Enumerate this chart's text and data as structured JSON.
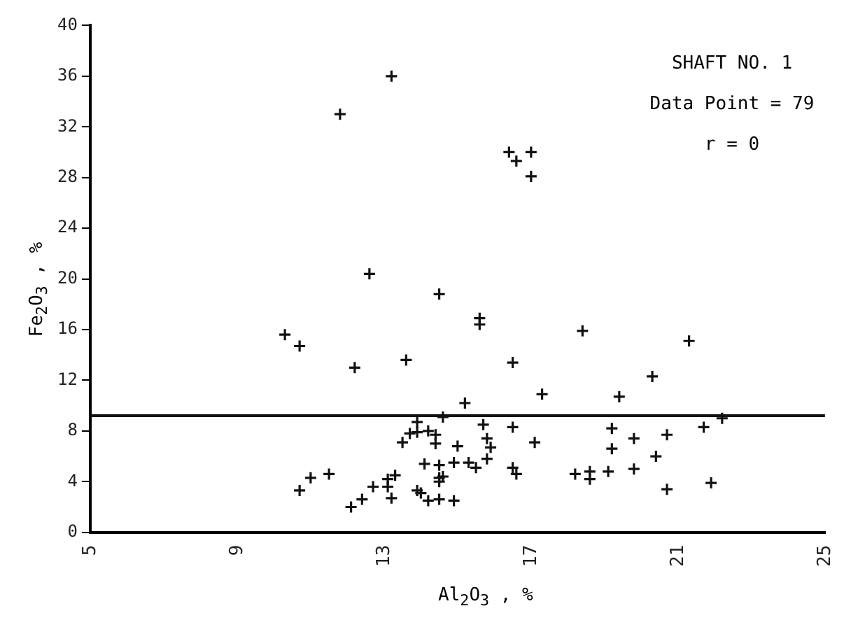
{
  "chart_data": {
    "type": "scatter",
    "xlabel": "Al$_{2}$O$_{3}$ , %",
    "ylabel": "Fe$_{2}$O$_{3}$ , %",
    "annotations": [
      "SHAFT NO. 1",
      "Data Point = 79",
      "r = 0"
    ],
    "xlim": [
      5,
      25
    ],
    "xticks": [
      5,
      9,
      13,
      17,
      21,
      25
    ],
    "ylim": [
      0,
      40
    ],
    "yticks": [
      0,
      4,
      8,
      12,
      16,
      20,
      24,
      28,
      32,
      36,
      40
    ],
    "grid": false,
    "legend": false,
    "marker": "cross",
    "ref_lines": [
      {
        "axis": "y",
        "value": 9.2,
        "color": "#111111"
      }
    ],
    "series": [
      {
        "color": "#111111",
        "x": [
          13.2,
          11.8,
          12.6,
          14.5,
          16.4,
          17.0,
          16.6,
          17.0,
          10.3,
          10.7,
          12.2,
          13.6,
          15.6,
          15.6,
          18.4,
          21.3,
          16.5,
          20.3,
          15.2,
          17.3,
          19.4,
          14.6,
          22.2,
          15.7,
          16.5,
          19.2,
          21.7,
          15.8,
          15.9,
          17.1,
          19.8,
          20.7,
          19.2,
          15.8,
          15.3,
          15.5,
          20.4,
          16.5,
          16.6,
          18.2,
          18.6,
          18.6,
          19.1,
          19.8,
          20.7,
          21.9,
          13.9,
          13.5,
          13.7,
          13.9,
          14.2,
          14.4,
          14.4,
          15.0,
          14.1,
          14.5,
          14.9,
          14.5,
          14.6,
          14.5,
          13.9,
          14.0,
          14.2,
          14.5,
          14.9,
          13.3,
          13.1,
          13.1,
          13.2,
          12.7,
          12.4,
          12.1,
          11.5,
          11.0,
          10.7
        ],
        "values": [
          36.0,
          33.0,
          20.4,
          18.8,
          30.0,
          30.0,
          29.3,
          28.1,
          15.6,
          14.7,
          13.0,
          13.6,
          16.9,
          16.4,
          15.9,
          15.1,
          13.4,
          12.3,
          10.2,
          10.9,
          10.7,
          9.1,
          9.0,
          8.5,
          8.3,
          8.2,
          8.3,
          7.4,
          6.7,
          7.1,
          7.4,
          7.7,
          6.6,
          5.8,
          5.5,
          5.1,
          6.0,
          5.1,
          4.6,
          4.6,
          4.8,
          4.2,
          4.8,
          5.0,
          3.4,
          3.9,
          8.7,
          7.1,
          7.8,
          7.9,
          8.0,
          7.7,
          7.0,
          6.8,
          5.4,
          5.3,
          5.5,
          4.3,
          4.4,
          4.0,
          3.3,
          3.1,
          2.5,
          2.6,
          2.5,
          4.5,
          4.2,
          3.6,
          2.7,
          3.6,
          2.6,
          2.0,
          4.6,
          4.3,
          3.3
        ]
      }
    ]
  }
}
